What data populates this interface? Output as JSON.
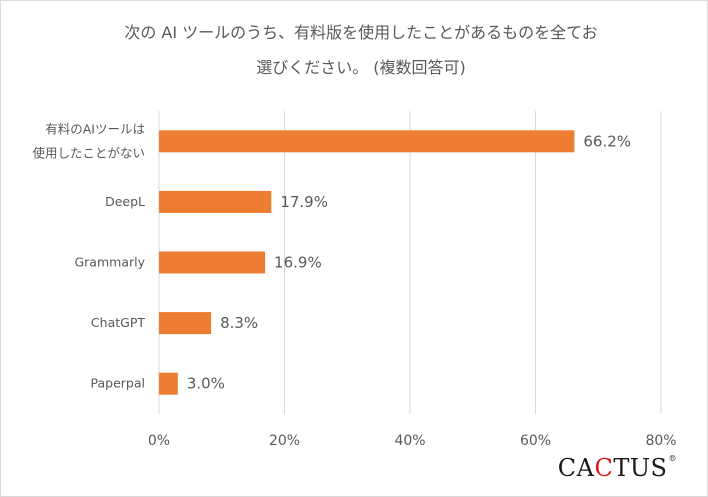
{
  "chart_data": {
    "type": "bar",
    "orientation": "horizontal",
    "title_lines": [
      "次の AI ツールのうち、有料版を使用したことがあるものを全てお",
      "選びください。 (複数回答可)"
    ],
    "categories": [
      [
        "有料のAIツールは",
        "使用したことがない"
      ],
      [
        "DeepL"
      ],
      [
        "Grammarly"
      ],
      [
        "ChatGPT"
      ],
      [
        "Paperpal"
      ]
    ],
    "values": [
      66.2,
      17.9,
      16.9,
      8.3,
      3.0
    ],
    "value_labels": [
      "66.2%",
      "17.9%",
      "16.9%",
      "8.3%",
      "3.0%"
    ],
    "xlim": [
      0,
      80
    ],
    "xticks": [
      0,
      20,
      40,
      60,
      80
    ],
    "xtick_labels": [
      "0%",
      "20%",
      "40%",
      "60%",
      "80%"
    ],
    "grid": true,
    "bar_color": "#ed7d31",
    "grid_color": "#d9d9d9",
    "text_color": "#595959"
  },
  "brand": {
    "prefix": "CA",
    "accent": "C",
    "suffix": "TUS",
    "mark": "®",
    "accent_color": "#d7191c"
  }
}
